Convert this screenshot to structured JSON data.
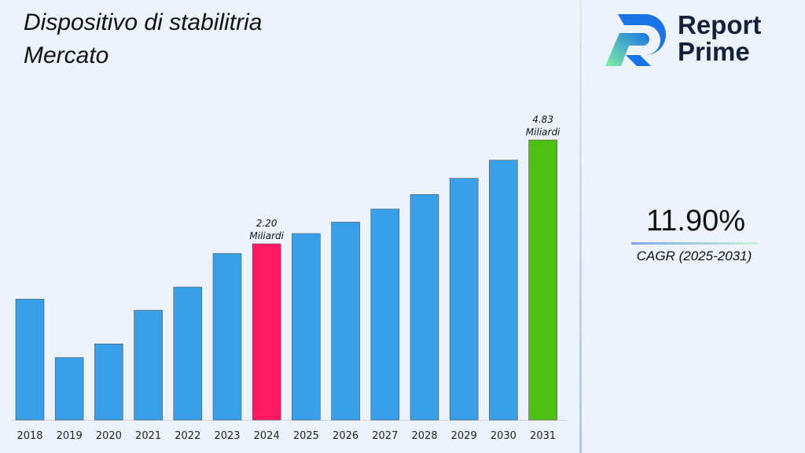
{
  "title": "Dispositivo di stabilitria Mercato",
  "logo": {
    "line1": "Report",
    "line2": "Prime"
  },
  "cagr": {
    "value": "11.90%",
    "label": "CAGR (2025-2031)"
  },
  "chart_data": {
    "type": "bar",
    "title": "Dispositivo di stabilitria Mercato",
    "categories": [
      "2018",
      "2019",
      "2020",
      "2021",
      "2022",
      "2023",
      "2024",
      "2025",
      "2026",
      "2027",
      "2028",
      "2029",
      "2030",
      "2031"
    ],
    "values": [
      1.51,
      0.78,
      0.95,
      1.37,
      1.66,
      2.08,
      2.2,
      2.46,
      2.75,
      3.08,
      3.45,
      3.86,
      4.32,
      4.83
    ],
    "unit": "Miliardi",
    "annotations": [
      {
        "category": "2024",
        "text": "2.20",
        "unit": "Miliardi"
      },
      {
        "category": "2031",
        "text": "4.83",
        "unit": "Miliardi"
      }
    ],
    "colors": {
      "default": "#38a0e8",
      "highlight_2024": "#ff1a63",
      "highlight_2031": "#4cc114"
    },
    "grid": false,
    "legend": "none"
  }
}
